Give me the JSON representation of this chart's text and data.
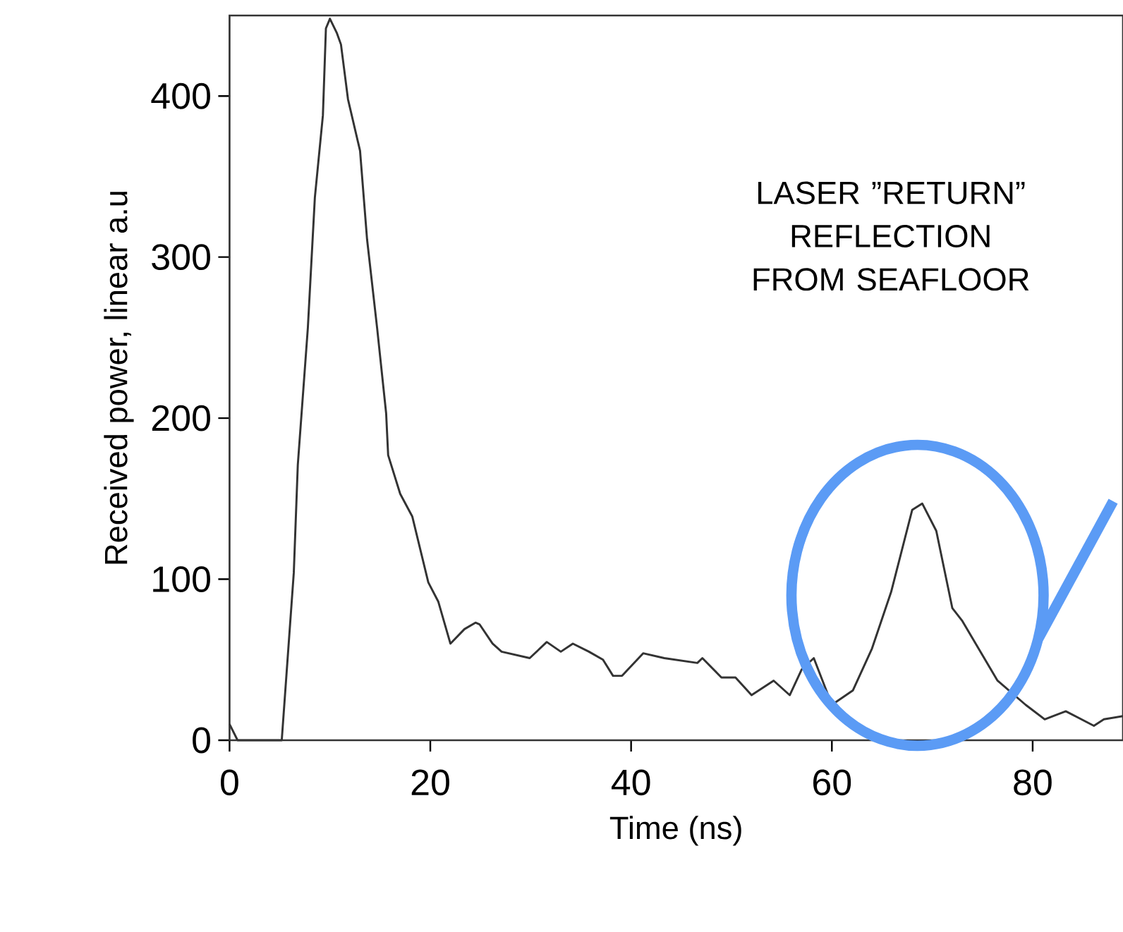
{
  "chart_data": {
    "type": "line",
    "xlabel": "Time (ns)",
    "ylabel": "Received power, linear a.u",
    "x": [
      0,
      0.8,
      5.2,
      6.4,
      6.8,
      7.8,
      8.5,
      9.3,
      9.6,
      10.0,
      10.7,
      11.1,
      11.8,
      13.0,
      13.7,
      14.7,
      15.6,
      15.8,
      17.0,
      18.2,
      19.8,
      20.8,
      22.0,
      23.4,
      24.5,
      24.9,
      26.2,
      27.1,
      28.5,
      29.9,
      31.6,
      33.0,
      34.2,
      35.8,
      37.2,
      38.2,
      39.1,
      41.2,
      43.3,
      46.6,
      47.1,
      49.0,
      50.4,
      52.0,
      54.2,
      55.8,
      57.0,
      58.2,
      60.0,
      62.1,
      64.0,
      65.9,
      68.0,
      69.0,
      70.4,
      72.0,
      73.0,
      76.5,
      79.3,
      81.2,
      83.3,
      86.1,
      87.1,
      89.0
    ],
    "values": [
      10,
      0,
      0,
      104,
      171,
      256,
      337,
      388,
      442,
      448,
      439,
      432,
      398,
      366,
      311,
      256,
      203,
      177,
      153,
      139,
      98,
      86,
      60,
      69,
      73,
      72,
      60,
      55,
      53,
      51,
      61,
      55,
      60,
      55,
      50,
      40,
      40,
      54,
      51,
      48,
      51,
      39,
      39,
      28,
      37,
      28,
      44,
      51,
      22,
      31,
      57,
      92,
      143,
      147,
      130,
      82,
      74,
      37,
      22,
      13,
      18,
      9,
      13,
      15
    ],
    "color": "#333333",
    "xlim": [
      0,
      89
    ],
    "ylim": [
      0,
      450
    ],
    "xticks": [
      0,
      20,
      40,
      60,
      80
    ],
    "yticks": [
      0,
      100,
      200,
      300,
      400
    ],
    "grid": false,
    "marker": "none",
    "line_style": "solid",
    "annotations": [
      "LASER ”RETURN” REFLECTION FROM SEAFLOOR"
    ]
  }
}
